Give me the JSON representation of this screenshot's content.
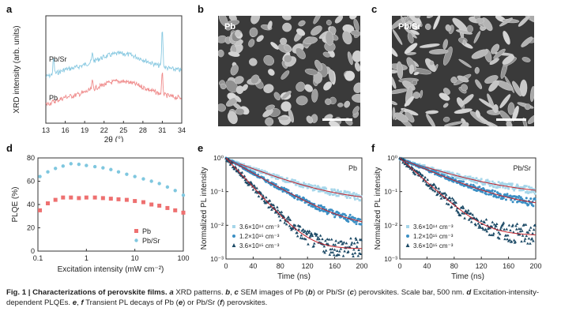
{
  "panels": {
    "a": "a",
    "b": "b",
    "c": "c",
    "d": "d",
    "e": "e",
    "f": "f"
  },
  "sem": {
    "b": {
      "label": "Pb"
    },
    "c": {
      "label": "Pb/Sr"
    }
  },
  "chart_data": [
    {
      "id": "a",
      "type": "line",
      "title": "",
      "xlabel": "2θ (°)",
      "ylabel": "XRD intensity (arb. units)",
      "xlim": [
        13,
        34
      ],
      "xticks": [
        13,
        16,
        19,
        22,
        25,
        28,
        31,
        34
      ],
      "series": [
        {
          "name": "Pb/Sr",
          "color": "#89c9e1",
          "peaks": [
            14.2,
            20.2,
            31.0
          ]
        },
        {
          "name": "Pb",
          "color": "#ef8a8a",
          "peaks": [
            20.2,
            31.0
          ]
        }
      ]
    },
    {
      "id": "d",
      "type": "scatter",
      "xlabel": "Excitation intensity (mW cm⁻²)",
      "ylabel": "PLQE (%)",
      "xscale": "log",
      "xlim": [
        0.1,
        100
      ],
      "ylim": [
        0,
        80
      ],
      "yticks": [
        0,
        20,
        40,
        60,
        80
      ],
      "xticks": [
        "0.1",
        "1",
        "10",
        "100"
      ],
      "legend_position": "bottom-right",
      "series": [
        {
          "name": "Pb",
          "color": "#ee7070",
          "marker": "square",
          "x": [
            0.11,
            0.16,
            0.23,
            0.33,
            0.48,
            0.7,
            1.0,
            1.5,
            2.2,
            3.2,
            4.6,
            6.8,
            10,
            15,
            22,
            32,
            47,
            68,
            100
          ],
          "y": [
            35,
            41,
            44,
            46,
            46,
            45.5,
            46,
            46,
            45.5,
            45,
            44.5,
            44,
            43,
            42,
            40,
            39,
            37,
            35,
            33
          ]
        },
        {
          "name": "Pb/Sr",
          "color": "#7fc7df",
          "marker": "circle",
          "x": [
            0.11,
            0.16,
            0.23,
            0.33,
            0.48,
            0.7,
            1.0,
            1.5,
            2.2,
            3.2,
            4.6,
            6.8,
            10,
            15,
            22,
            32,
            47,
            68,
            100
          ],
          "y": [
            64,
            68,
            71,
            73,
            75,
            74.5,
            73.5,
            72.5,
            71.5,
            70,
            68,
            66,
            64,
            62,
            60,
            58,
            55,
            52,
            48
          ]
        }
      ]
    },
    {
      "id": "e",
      "type": "scatter",
      "xlabel": "Time (ns)",
      "ylabel": "Normalized PL intensity",
      "yscale": "log",
      "xlim": [
        0,
        200
      ],
      "ylim": [
        0.001,
        1
      ],
      "xticks": [
        0,
        40,
        80,
        120,
        160,
        200
      ],
      "label": "Pb",
      "series": [
        {
          "name": "3.6×10¹⁴ cm⁻³",
          "color": "#a6d6ea",
          "marker": "square",
          "end": 0.05,
          "tau": 55
        },
        {
          "name": "1.2×10¹⁵ cm⁻³",
          "color": "#3b8fc4",
          "marker": "circle",
          "end": 0.008,
          "tau": 38
        },
        {
          "name": "3.6×10¹⁵ cm⁻³",
          "color": "#1c4a66",
          "marker": "triangle",
          "end": 0.002,
          "tau": 20
        }
      ]
    },
    {
      "id": "f",
      "type": "scatter",
      "xlabel": "Time (ns)",
      "ylabel": "Normalized PL intensity",
      "yscale": "log",
      "xlim": [
        0,
        200
      ],
      "ylim": [
        0.001,
        1
      ],
      "xticks": [
        0,
        40,
        80,
        120,
        160,
        200
      ],
      "label": "Pb/Sr",
      "series": [
        {
          "name": "3.6×10¹⁴ cm⁻³",
          "color": "#a6d6ea",
          "marker": "square",
          "end": 0.08,
          "tau": 65
        },
        {
          "name": "1.2×10¹⁵ cm⁻³",
          "color": "#3b8fc4",
          "marker": "circle",
          "end": 0.032,
          "tau": 50
        },
        {
          "name": "3.6×10¹⁵ cm⁻³",
          "color": "#1c4a66",
          "marker": "triangle",
          "end": 0.005,
          "tau": 24
        }
      ]
    }
  ],
  "caption": {
    "fig": "Fig. 1 | Characterizations of perovskite films.",
    "a": "a",
    "a_text": " XRD patterns. ",
    "bc": "b",
    "bc_sep": ", ",
    "c": "c",
    "bc_text": " SEM images of Pb (",
    "b2": "b",
    "mid": ") or Pb/Sr (",
    "c2": "c",
    "bc_end": ") perovskites. Scale bar, 500 nm. ",
    "d": "d",
    "d_text": " Excitation-intensity-dependent PLQEs. ",
    "e": "e",
    "ef_sep": ", ",
    "f": "f",
    "ef_text": " Transient PL decays of Pb (",
    "e2": "e",
    "ef_mid": ") or Pb/Sr (",
    "f2": "f",
    "ef_end": ") perovskites."
  }
}
